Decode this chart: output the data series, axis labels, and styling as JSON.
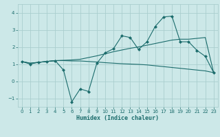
{
  "title": "",
  "xlabel": "Humidex (Indice chaleur)",
  "ylabel": "",
  "bg_color": "#cce8e8",
  "grid_color": "#aacece",
  "line_color": "#1a6b6b",
  "x_vals": [
    0,
    1,
    2,
    3,
    4,
    5,
    6,
    7,
    8,
    9,
    10,
    11,
    12,
    13,
    14,
    15,
    16,
    17,
    18,
    19,
    20,
    21,
    22,
    23
  ],
  "line1_y": [
    1.15,
    1.0,
    1.1,
    1.15,
    1.2,
    0.65,
    -1.2,
    -0.45,
    -0.6,
    1.05,
    1.65,
    1.9,
    2.65,
    2.55,
    1.85,
    2.3,
    3.2,
    3.75,
    3.8,
    2.3,
    2.3,
    1.8,
    1.45,
    0.5
  ],
  "line2_y": [
    1.15,
    1.05,
    1.1,
    1.15,
    1.2,
    1.22,
    1.24,
    1.28,
    1.38,
    1.48,
    1.6,
    1.72,
    1.82,
    1.92,
    2.0,
    2.1,
    2.2,
    2.3,
    2.4,
    2.45,
    2.45,
    2.5,
    2.55,
    0.5
  ],
  "line3_y": [
    1.15,
    1.05,
    1.1,
    1.15,
    1.2,
    1.2,
    1.18,
    1.18,
    1.15,
    1.12,
    1.08,
    1.05,
    1.02,
    1.0,
    0.98,
    0.95,
    0.9,
    0.85,
    0.8,
    0.75,
    0.7,
    0.65,
    0.6,
    0.5
  ],
  "xlim": [
    -0.5,
    23.5
  ],
  "ylim": [
    -1.5,
    4.5
  ],
  "yticks": [
    -1,
    0,
    1,
    2,
    3,
    4
  ],
  "xticks": [
    0,
    1,
    2,
    3,
    4,
    5,
    6,
    7,
    8,
    9,
    10,
    11,
    12,
    13,
    14,
    15,
    16,
    17,
    18,
    19,
    20,
    21,
    22,
    23
  ],
  "tick_fontsize": 5.0,
  "xlabel_fontsize": 6.0,
  "lw": 0.8,
  "marker_size": 2.2
}
